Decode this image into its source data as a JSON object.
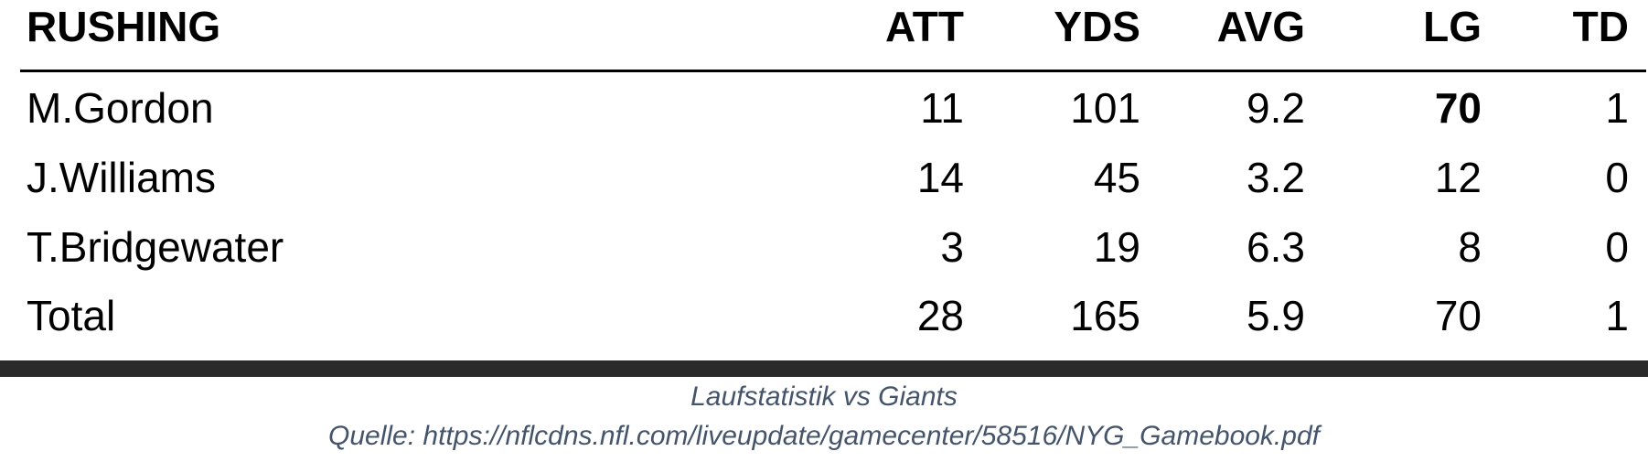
{
  "table": {
    "header": [
      "RUSHING",
      "ATT",
      "YDS",
      "AVG",
      "LG",
      "TD"
    ],
    "rows": [
      [
        "M.Gordon",
        11,
        101,
        9.2,
        70,
        1
      ],
      [
        "J.Williams",
        14,
        45,
        3.2,
        12,
        0
      ],
      [
        "T.Bridgewater",
        3,
        19,
        6.3,
        8,
        0
      ],
      [
        "Total",
        28,
        165,
        5.9,
        70,
        1
      ]
    ]
  },
  "caption": {
    "title": "Laufstatistik vs Giants",
    "source": "Quelle: https://nflcdns.nfl.com/liveupdate/gamecenter/58516/NYG_Gamebook.pdf"
  }
}
